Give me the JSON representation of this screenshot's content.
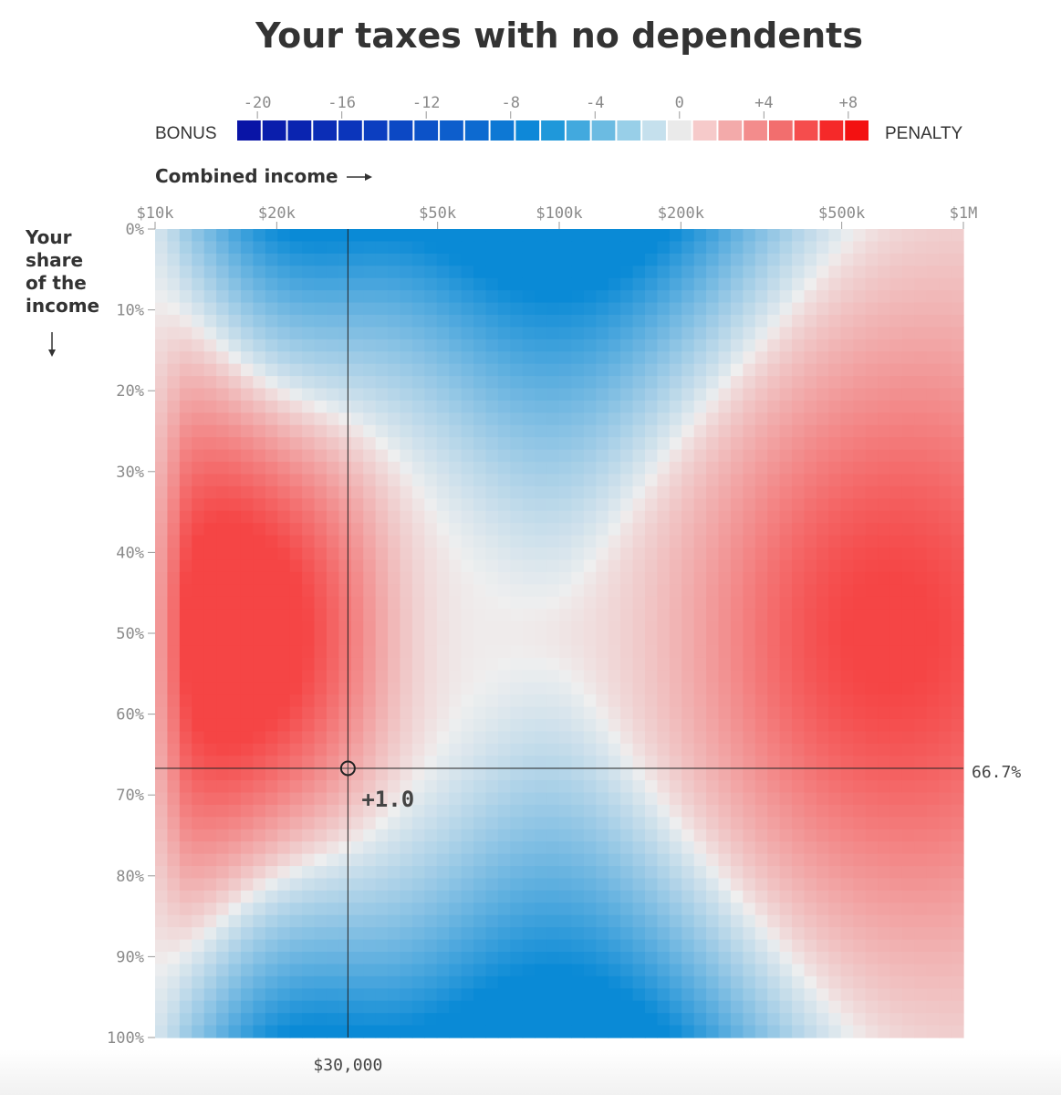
{
  "chart_data": {
    "type": "heatmap",
    "title": "Your taxes with no dependents",
    "legend": {
      "left_label": "BONUS",
      "right_label": "PENALTY",
      "ticks": [
        "-20",
        "-16",
        "-12",
        "-8",
        "-4",
        "0",
        "+4",
        "+8"
      ],
      "tick_values": [
        -20,
        -16,
        -12,
        -8,
        -4,
        0,
        4,
        8
      ],
      "range": [
        -21,
        9
      ],
      "colors": [
        "#0914a6",
        "#0a1eac",
        "#0a24b0",
        "#0b2db6",
        "#0b35bb",
        "#0c3ec0",
        "#0c48c4",
        "#0c52c8",
        "#0d5ecc",
        "#0d6ad0",
        "#0d78d4",
        "#0e88d8",
        "#1f98da",
        "#42a9de",
        "#6bbbe2",
        "#98cfe8",
        "#c5e0ed",
        "#eaeaea",
        "#f6caca",
        "#f3aaaa",
        "#f38c8c",
        "#f26e6e",
        "#f54d4d",
        "#f52929",
        "#f31111"
      ]
    },
    "xlabel": "Combined income",
    "ylabel": "Your share of the income",
    "x_ticks": [
      "$10k",
      "$20k",
      "$50k",
      "$100k",
      "$200k",
      "$500k",
      "$1M"
    ],
    "x_tick_values": [
      10000,
      20000,
      50000,
      100000,
      200000,
      500000,
      1000000
    ],
    "x_scale": "log",
    "xlim": [
      10000,
      1000000
    ],
    "y_ticks": [
      "0%",
      "10%",
      "20%",
      "30%",
      "40%",
      "50%",
      "60%",
      "70%",
      "80%",
      "90%",
      "100%"
    ],
    "y_tick_values": [
      0,
      10,
      20,
      30,
      40,
      50,
      60,
      70,
      80,
      90,
      100
    ],
    "ylim": [
      0,
      100
    ],
    "grid": {
      "nx": 66,
      "ny": 66
    },
    "surface": {
      "description": "difference in tax (bonus negative, penalty positive) by combined income and your share",
      "low_income_penalty_peak": {
        "x": 17000,
        "share": 50,
        "value": 6
      },
      "high_income_penalty_peak": {
        "x": 800000,
        "share": 50,
        "value": 5
      },
      "middle_bonus_at_extremes": {
        "x": 100000,
        "share": [
          0,
          100
        ],
        "value": -8
      }
    },
    "selection": {
      "income": 30000,
      "income_label": "$30,000",
      "share": 66.7,
      "share_label": "66.7%",
      "value_label": "+1.0"
    }
  }
}
